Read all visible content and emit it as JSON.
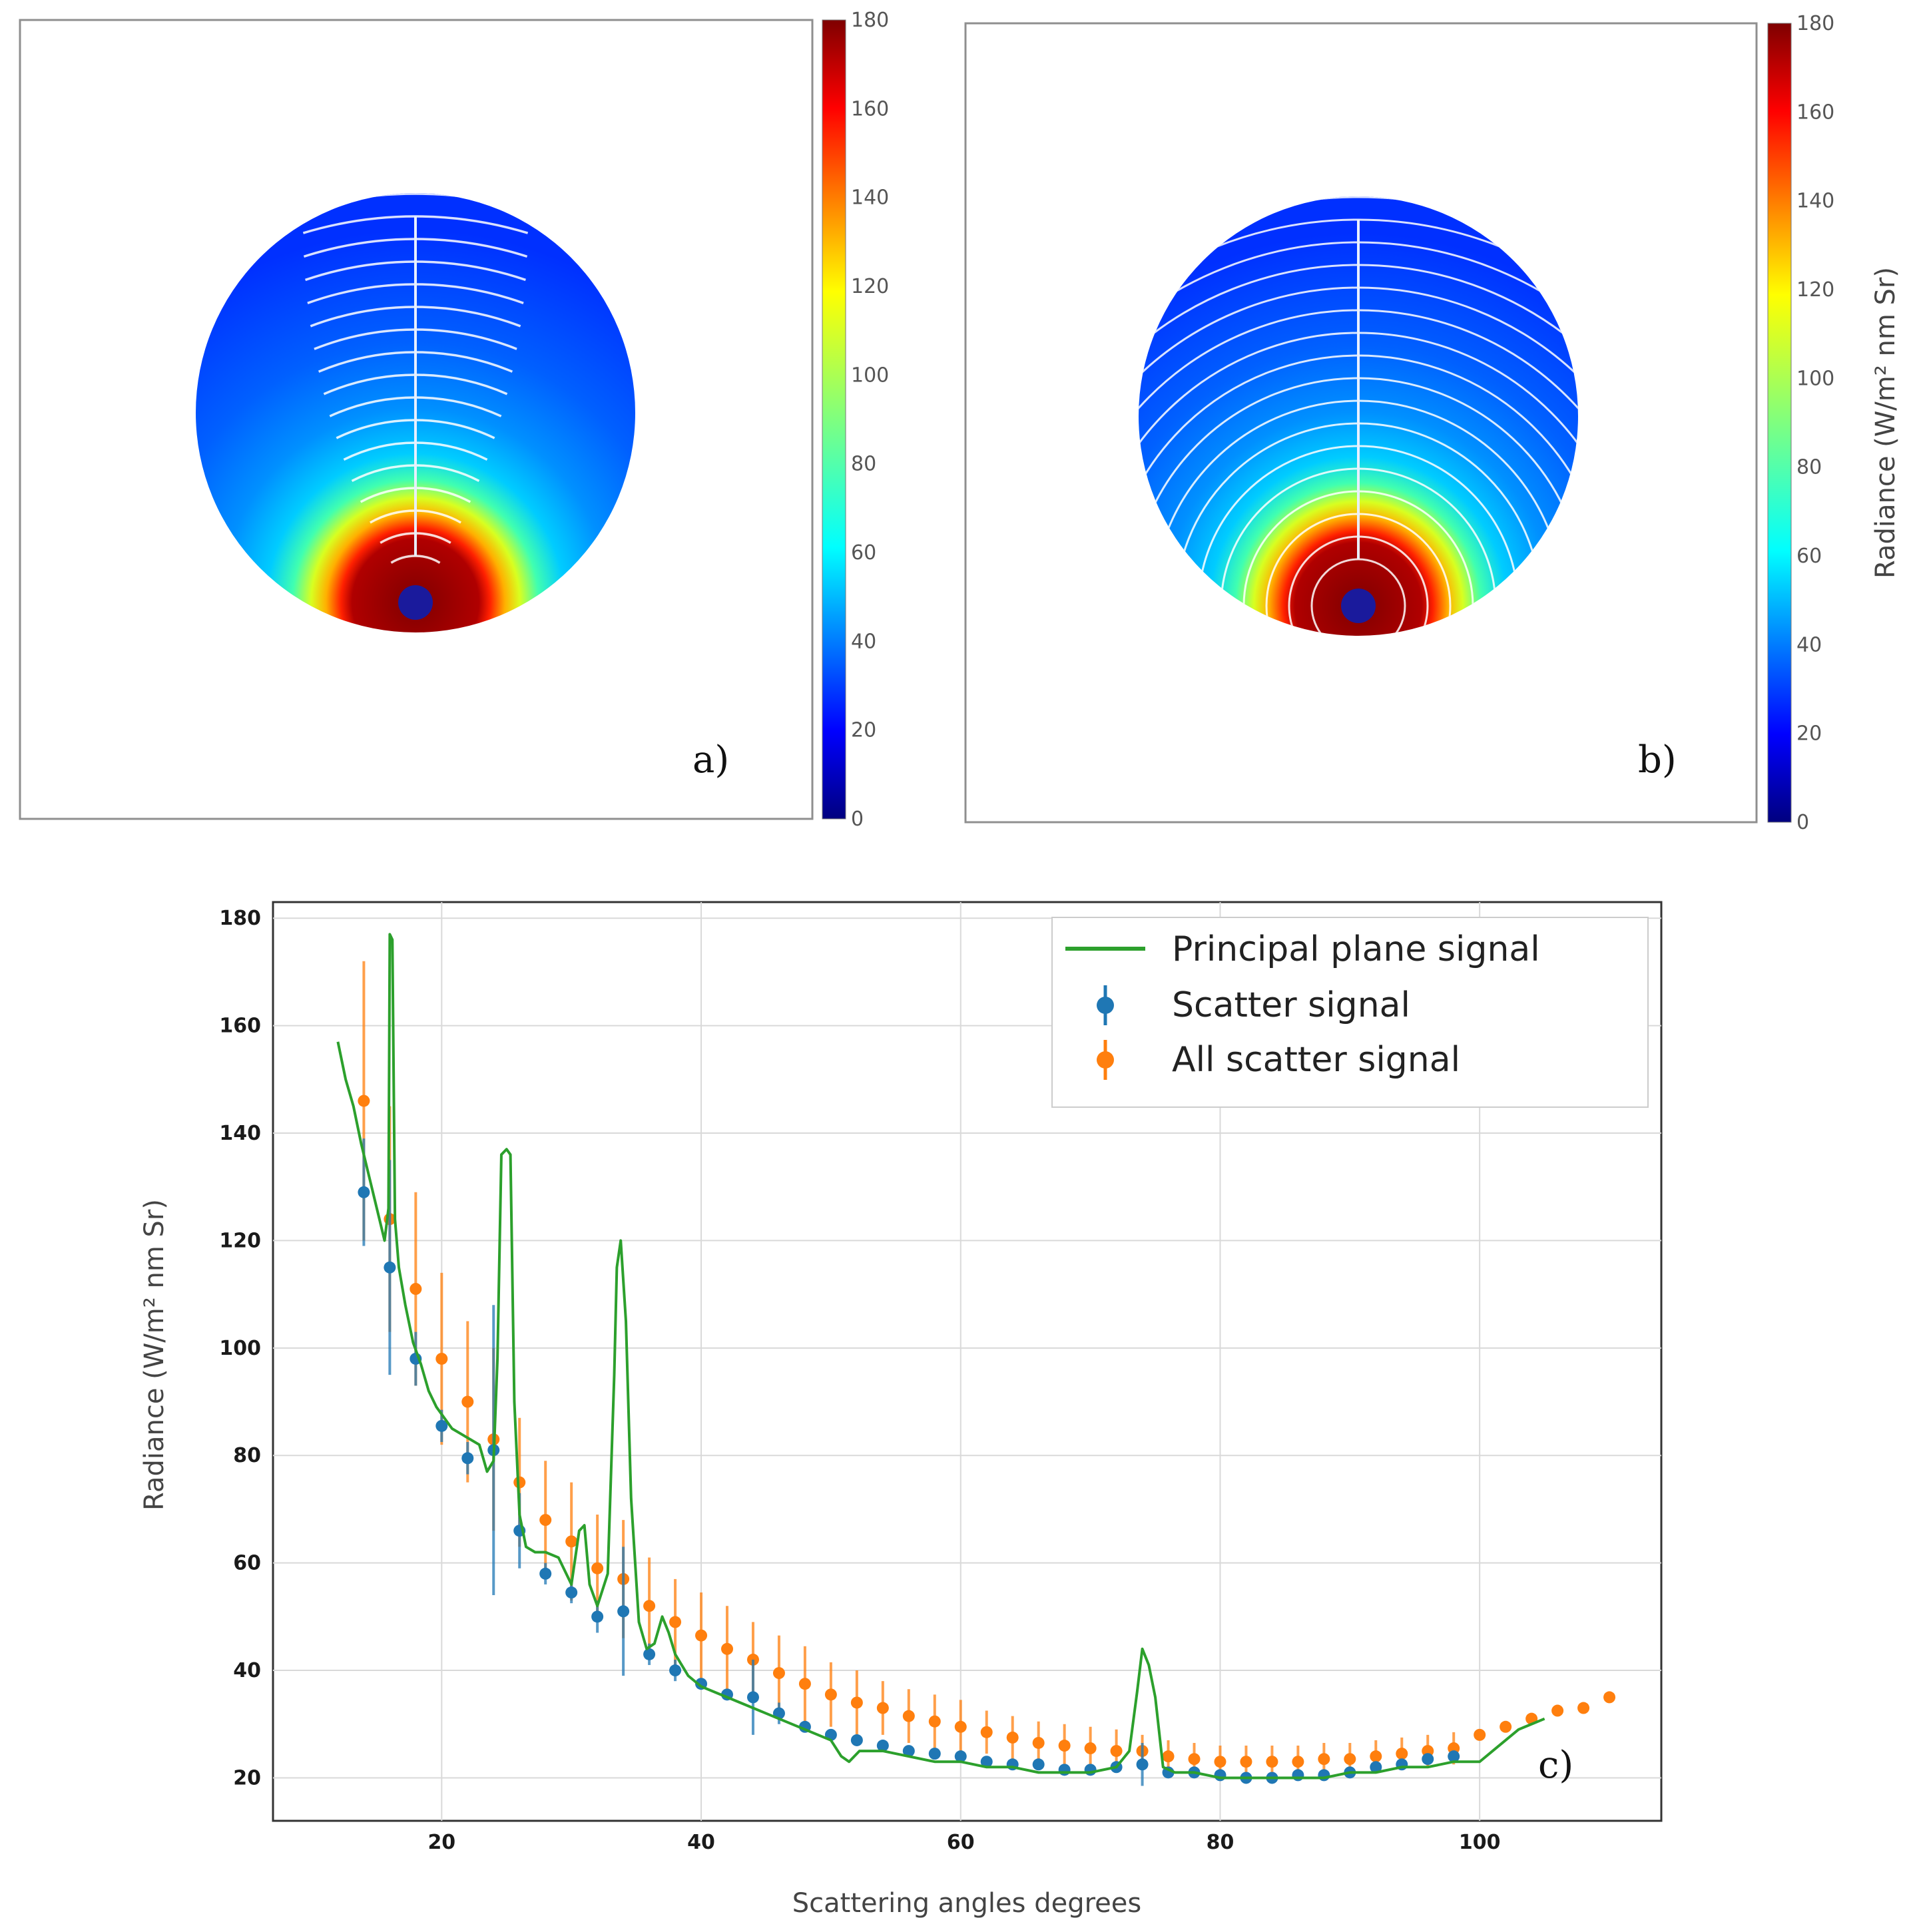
{
  "panels": [
    {
      "letter": "a)"
    },
    {
      "letter": "b)"
    }
  ],
  "colorbar": {
    "ticks": [
      "180",
      "160",
      "140",
      "120",
      "100",
      "80",
      "60",
      "40",
      "20",
      "0"
    ],
    "label": "Radiance (W/m² nm Sr)",
    "colors": [
      "#00007f",
      "#0000ff",
      "#0080ff",
      "#00ffff",
      "#7fff7f",
      "#ffff00",
      "#ff8000",
      "#ff0000",
      "#7f0000"
    ]
  },
  "chart_data": {
    "type": "line",
    "panel_letter": "c)",
    "xlabel": "Scattering angles degrees",
    "ylabel": "Radiance (W/m² nm Sr)",
    "xlim": [
      7,
      114
    ],
    "ylim": [
      12,
      183
    ],
    "x_ticks": [
      20,
      40,
      60,
      80,
      100
    ],
    "y_ticks": [
      20,
      40,
      60,
      80,
      100,
      120,
      140,
      160,
      180
    ],
    "grid": true,
    "legend_position": "top-right",
    "series": [
      {
        "name": "Principal plane signal",
        "color": "#2ca02c",
        "x": [
          12,
          12.6,
          13.2,
          13.8,
          14.4,
          15,
          15.6,
          15.9,
          16.0,
          16.2,
          16.4,
          16.7,
          17.2,
          17.8,
          18.4,
          19,
          19.6,
          20.2,
          20.8,
          21.5,
          22.2,
          22.9,
          23.5,
          24.0,
          24.3,
          24.6,
          25.0,
          25.3,
          25.6,
          26.0,
          26.5,
          27.2,
          28,
          29,
          30,
          30.6,
          31.0,
          31.4,
          32,
          32.8,
          33.3,
          33.5,
          33.8,
          34.2,
          34.6,
          35.2,
          35.8,
          36.4,
          37.0,
          37.5,
          38,
          39,
          40,
          42,
          44,
          46,
          48,
          50,
          50.8,
          51.4,
          52.2,
          54,
          56,
          58,
          60,
          62,
          64,
          66,
          68,
          70,
          72,
          73,
          73.6,
          74.0,
          74.5,
          75.0,
          75.6,
          76.5,
          78,
          80,
          82,
          84,
          86,
          88,
          90,
          92,
          94,
          96,
          98,
          99,
          100,
          101,
          102,
          103,
          104,
          105
        ],
        "y": [
          157,
          150,
          145,
          138,
          132,
          126,
          120,
          126,
          177,
          176,
          124,
          115,
          108,
          101,
          97,
          92,
          89,
          87,
          85,
          84,
          83,
          82,
          77,
          79,
          98,
          136,
          137,
          136,
          90,
          69,
          63,
          62,
          62,
          61,
          56,
          66,
          67,
          56,
          52,
          58,
          95,
          115,
          120,
          105,
          72,
          49,
          44,
          45,
          50,
          47,
          43,
          39,
          37,
          35,
          33,
          31,
          29,
          27,
          24,
          23,
          25,
          25,
          24,
          23,
          23,
          22,
          22,
          21,
          21,
          21,
          22,
          25,
          36,
          44,
          41,
          35,
          22,
          21,
          21,
          20,
          20,
          20,
          20,
          20,
          21,
          21,
          22,
          22,
          23,
          23,
          23,
          25,
          27,
          29,
          30,
          31
        ]
      },
      {
        "name": "Scatter signal",
        "color": "#1f77b4",
        "x": [
          14,
          16,
          18,
          20,
          22,
          24,
          26,
          28,
          30,
          32,
          34,
          36,
          38,
          40,
          42,
          44,
          46,
          48,
          50,
          52,
          54,
          56,
          58,
          60,
          62,
          64,
          66,
          68,
          70,
          72,
          74,
          76,
          78,
          80,
          82,
          84,
          86,
          88,
          90,
          92,
          94,
          96,
          98
        ],
        "y": [
          129,
          115,
          98,
          85.5,
          79.5,
          81,
          66,
          58,
          54.5,
          50,
          51,
          43,
          40,
          37.5,
          35.5,
          35,
          32,
          29.5,
          28,
          27,
          26,
          25,
          24.5,
          24,
          23,
          22.5,
          22.5,
          21.5,
          21.5,
          22,
          22.5,
          21,
          21,
          20.5,
          20,
          20,
          20.5,
          20.5,
          21,
          22,
          22.5,
          23.5,
          24
        ],
        "yerr": [
          10,
          20,
          5,
          3,
          3,
          27,
          7,
          2,
          2,
          3,
          12,
          2,
          2,
          1,
          1,
          7,
          2,
          1,
          1,
          1,
          1,
          1,
          1,
          1,
          1,
          1,
          1,
          1,
          1,
          1,
          4,
          1,
          1,
          1,
          1,
          1,
          1,
          1,
          1,
          1,
          1,
          1,
          1
        ]
      },
      {
        "name": "All scatter signal",
        "color": "#ff7f0e",
        "x": [
          14,
          16,
          18,
          20,
          22,
          24,
          26,
          28,
          30,
          32,
          34,
          36,
          38,
          40,
          42,
          44,
          46,
          48,
          50,
          52,
          54,
          56,
          58,
          60,
          62,
          64,
          66,
          68,
          70,
          72,
          74,
          76,
          78,
          80,
          82,
          84,
          86,
          88,
          90,
          92,
          94,
          96,
          98,
          100,
          102,
          104,
          106,
          108,
          110
        ],
        "y": [
          146,
          124,
          111,
          98,
          90,
          83,
          75,
          68,
          64,
          59,
          57,
          52,
          49,
          46.5,
          44,
          42,
          39.5,
          37.5,
          35.5,
          34,
          33,
          31.5,
          30.5,
          29.5,
          28.5,
          27.5,
          26.5,
          26,
          25.5,
          25,
          25,
          24,
          23.5,
          23,
          23,
          23,
          23,
          23.5,
          23.5,
          24,
          24.5,
          25,
          25.5,
          28,
          29.5,
          31,
          32.5,
          33,
          35
        ],
        "yerr": [
          26,
          21,
          18,
          16,
          15,
          17,
          12,
          11,
          11,
          10,
          11,
          9,
          8,
          8,
          8,
          7,
          7,
          7,
          6,
          6,
          5,
          5,
          5,
          5,
          4,
          4,
          4,
          4,
          4,
          4,
          3,
          3,
          3,
          3,
          3,
          3,
          3,
          3,
          3,
          3,
          3,
          3,
          3,
          0,
          0,
          0,
          0,
          0,
          0
        ]
      }
    ]
  }
}
